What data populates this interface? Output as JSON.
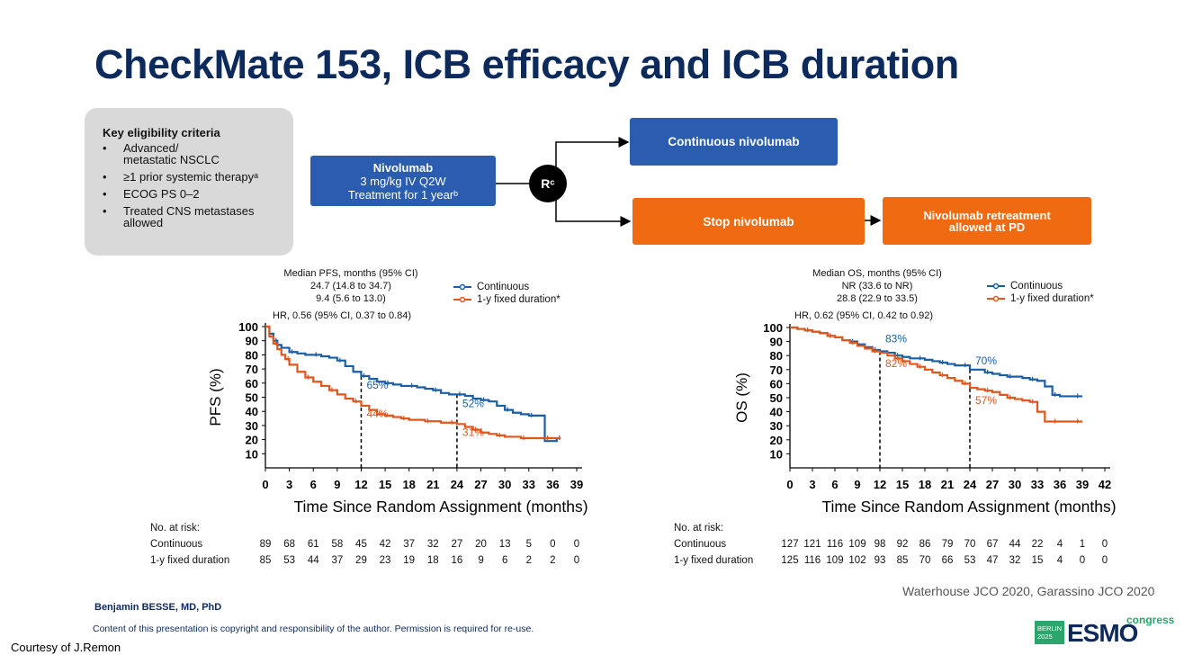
{
  "title": "CheckMate 153, ICB efficacy and ICB duration",
  "eligibility": {
    "heading": "Key eligibility criteria",
    "items": [
      "Advanced/ metastatic NSCLC",
      "≥1 prior systemic therapyᵃ",
      "ECOG PS 0–2",
      "Treated CNS metastases allowed"
    ]
  },
  "design": {
    "nivolumab_title": "Nivolumab",
    "nivolumab_dose": "3 mg/kg IV Q2W",
    "nivolumab_duration": "Treatment for 1 yearᵇ",
    "randomization": "Rᶜ",
    "continuous": "Continuous nivolumab",
    "stop": "Stop nivolumab",
    "retreatment_line1": "Nivolumab retreatment",
    "retreatment_line2": "allowed at PD"
  },
  "colors": {
    "continuous": "#1a5ea8",
    "fixed": "#e0561b",
    "navy": "#0d2a5c",
    "blue_box": "#2a5db0",
    "orange_box": "#ef6a10"
  },
  "chart_data": [
    {
      "type": "line",
      "title": "PFS",
      "median_header": "Median PFS, months (95% CI)",
      "median_continuous": "24.7 (14.8 to 34.7)",
      "median_fixed": "9.4 (5.6 to 13.0)",
      "hr": "HR, 0.56 (95% CI, 0.37 to 0.84)",
      "ylabel": "PFS (%)",
      "xlabel": "Time Since Random Assignment (months)",
      "xlim": [
        0,
        39
      ],
      "ylim": [
        0,
        100
      ],
      "xticks": [
        0,
        3,
        6,
        9,
        12,
        15,
        18,
        21,
        24,
        27,
        30,
        33,
        36,
        39
      ],
      "yticks": [
        10,
        20,
        30,
        40,
        50,
        60,
        70,
        80,
        90,
        100
      ],
      "series": [
        {
          "name": "Continuous",
          "color": "#1a5ea8",
          "x": [
            0,
            0.5,
            1,
            1.5,
            2,
            3,
            4,
            5,
            6,
            7,
            8,
            9,
            10,
            11,
            12,
            13,
            14,
            15,
            16,
            17,
            18,
            19,
            20,
            21,
            22,
            23,
            24,
            25,
            26,
            27,
            28,
            29,
            30,
            31,
            32,
            33,
            34,
            35,
            36.5
          ],
          "y": [
            100,
            95,
            90,
            87,
            85,
            82,
            81,
            80,
            80,
            79,
            78,
            76,
            72,
            68,
            65,
            63,
            61,
            60,
            59,
            58,
            58,
            57,
            56,
            55,
            53,
            52,
            52,
            51,
            49,
            48,
            47,
            44,
            41,
            39,
            38,
            37,
            37,
            19,
            21
          ]
        },
        {
          "name": "1-y fixed duration*",
          "color": "#e0561b",
          "x": [
            0,
            0.5,
            1,
            1.5,
            2,
            2.5,
            3,
            4,
            5,
            6,
            7,
            8,
            9,
            10,
            11,
            12,
            13,
            14,
            15,
            16,
            17,
            18,
            19,
            20,
            21,
            22,
            23,
            24,
            25,
            26,
            27,
            28,
            29,
            30,
            31,
            32,
            33,
            34,
            35,
            36,
            37
          ],
          "y": [
            100,
            93,
            88,
            84,
            80,
            77,
            73,
            68,
            64,
            61,
            58,
            55,
            52,
            49,
            47,
            44,
            41,
            38,
            37,
            36,
            35,
            34,
            34,
            33,
            33,
            32,
            32,
            31,
            29,
            27,
            25,
            24,
            23,
            22,
            22,
            21,
            21,
            21,
            21,
            21,
            21
          ]
        }
      ],
      "landmarks": [
        {
          "x": 12,
          "continuous_label": "65%",
          "fixed_label": "44%"
        },
        {
          "x": 24,
          "continuous_label": "52%",
          "fixed_label": "31%"
        }
      ],
      "risk_header": "No. at risk:",
      "risk": [
        {
          "label": "Continuous",
          "values": [
            "89",
            "68",
            "61",
            "58",
            "45",
            "42",
            "37",
            "32",
            "27",
            "20",
            "13",
            "5",
            "0",
            "0"
          ]
        },
        {
          "label": "1-y fixed duration",
          "values": [
            "85",
            "53",
            "44",
            "37",
            "29",
            "23",
            "19",
            "18",
            "16",
            "9",
            "6",
            "2",
            "2",
            "0"
          ]
        }
      ]
    },
    {
      "type": "line",
      "title": "OS",
      "median_header": "Median OS, months (95% CI)",
      "median_continuous": "NR (33.6 to NR)",
      "median_fixed": "28.8 (22.9 to 33.5)",
      "hr": "HR, 0.62 (95% CI, 0.42  to 0.92)",
      "ylabel": "OS (%)",
      "xlabel": "Time Since Random Assignment (months)",
      "xlim": [
        0,
        42
      ],
      "ylim": [
        0,
        100
      ],
      "xticks": [
        0,
        3,
        6,
        9,
        12,
        15,
        18,
        21,
        24,
        27,
        30,
        33,
        36,
        39,
        42
      ],
      "yticks": [
        10,
        20,
        30,
        40,
        50,
        60,
        70,
        80,
        90,
        100
      ],
      "series": [
        {
          "name": "Continuous",
          "color": "#1a5ea8",
          "x": [
            0,
            1,
            2,
            3,
            4,
            5,
            6,
            7,
            8,
            9,
            10,
            11,
            12,
            13,
            14,
            15,
            16,
            17,
            18,
            19,
            20,
            21,
            22,
            23,
            24,
            25,
            26,
            27,
            28,
            29,
            30,
            31,
            32,
            33,
            34,
            35,
            36,
            37,
            38,
            39
          ],
          "y": [
            100,
            99,
            98,
            97,
            96,
            94,
            93,
            91,
            90,
            88,
            86,
            84,
            83,
            82,
            80,
            79,
            78,
            78,
            77,
            76,
            75,
            74,
            73,
            73,
            70,
            70,
            68,
            67,
            66,
            65,
            65,
            64,
            63,
            62,
            58,
            52,
            51,
            51,
            51,
            51
          ]
        },
        {
          "name": "1-y fixed duration*",
          "color": "#e0561b",
          "x": [
            0,
            1,
            2,
            3,
            4,
            5,
            6,
            7,
            8,
            9,
            10,
            11,
            12,
            13,
            14,
            15,
            16,
            17,
            18,
            19,
            20,
            21,
            22,
            23,
            24,
            25,
            26,
            27,
            28,
            29,
            30,
            31,
            32,
            33,
            34,
            35,
            36,
            37,
            38,
            39
          ],
          "y": [
            100,
            99,
            98,
            97,
            96,
            94,
            93,
            91,
            89,
            87,
            85,
            83,
            82,
            80,
            78,
            76,
            74,
            72,
            70,
            68,
            66,
            64,
            62,
            60,
            57,
            56,
            55,
            54,
            52,
            50,
            49,
            48,
            47,
            40,
            33,
            33,
            33,
            33,
            33,
            33
          ]
        }
      ],
      "landmarks": [
        {
          "x": 12,
          "continuous_label": "83%",
          "fixed_label": "82%"
        },
        {
          "x": 24,
          "continuous_label": "70%",
          "fixed_label": "57%"
        }
      ],
      "risk_header": "No. at risk:",
      "risk": [
        {
          "label": "Continuous",
          "values": [
            "127",
            "121",
            "116",
            "109",
            "98",
            "92",
            "86",
            "79",
            "70",
            "67",
            "44",
            "22",
            "4",
            "1",
            "0"
          ]
        },
        {
          "label": "1-y fixed duration",
          "values": [
            "125",
            "116",
            "109",
            "102",
            "93",
            "85",
            "70",
            "66",
            "53",
            "47",
            "32",
            "15",
            "4",
            "0",
            "0"
          ]
        }
      ]
    }
  ],
  "legend": {
    "continuous": "Continuous",
    "fixed": "1-y fixed duration*"
  },
  "footer": {
    "author": "Benjamin BESSE, MD, PhD",
    "copyright": "Content of this presentation is copyright and responsibility of the author. Permission is required for re-use.",
    "courtesy": "Courtesy of J.Remon",
    "references": "Waterhouse JCO 2020, Garassino JCO 2020"
  },
  "logo": {
    "city": "BERLIN",
    "year": "2025",
    "brand": "ESMO",
    "suffix": "congress"
  }
}
